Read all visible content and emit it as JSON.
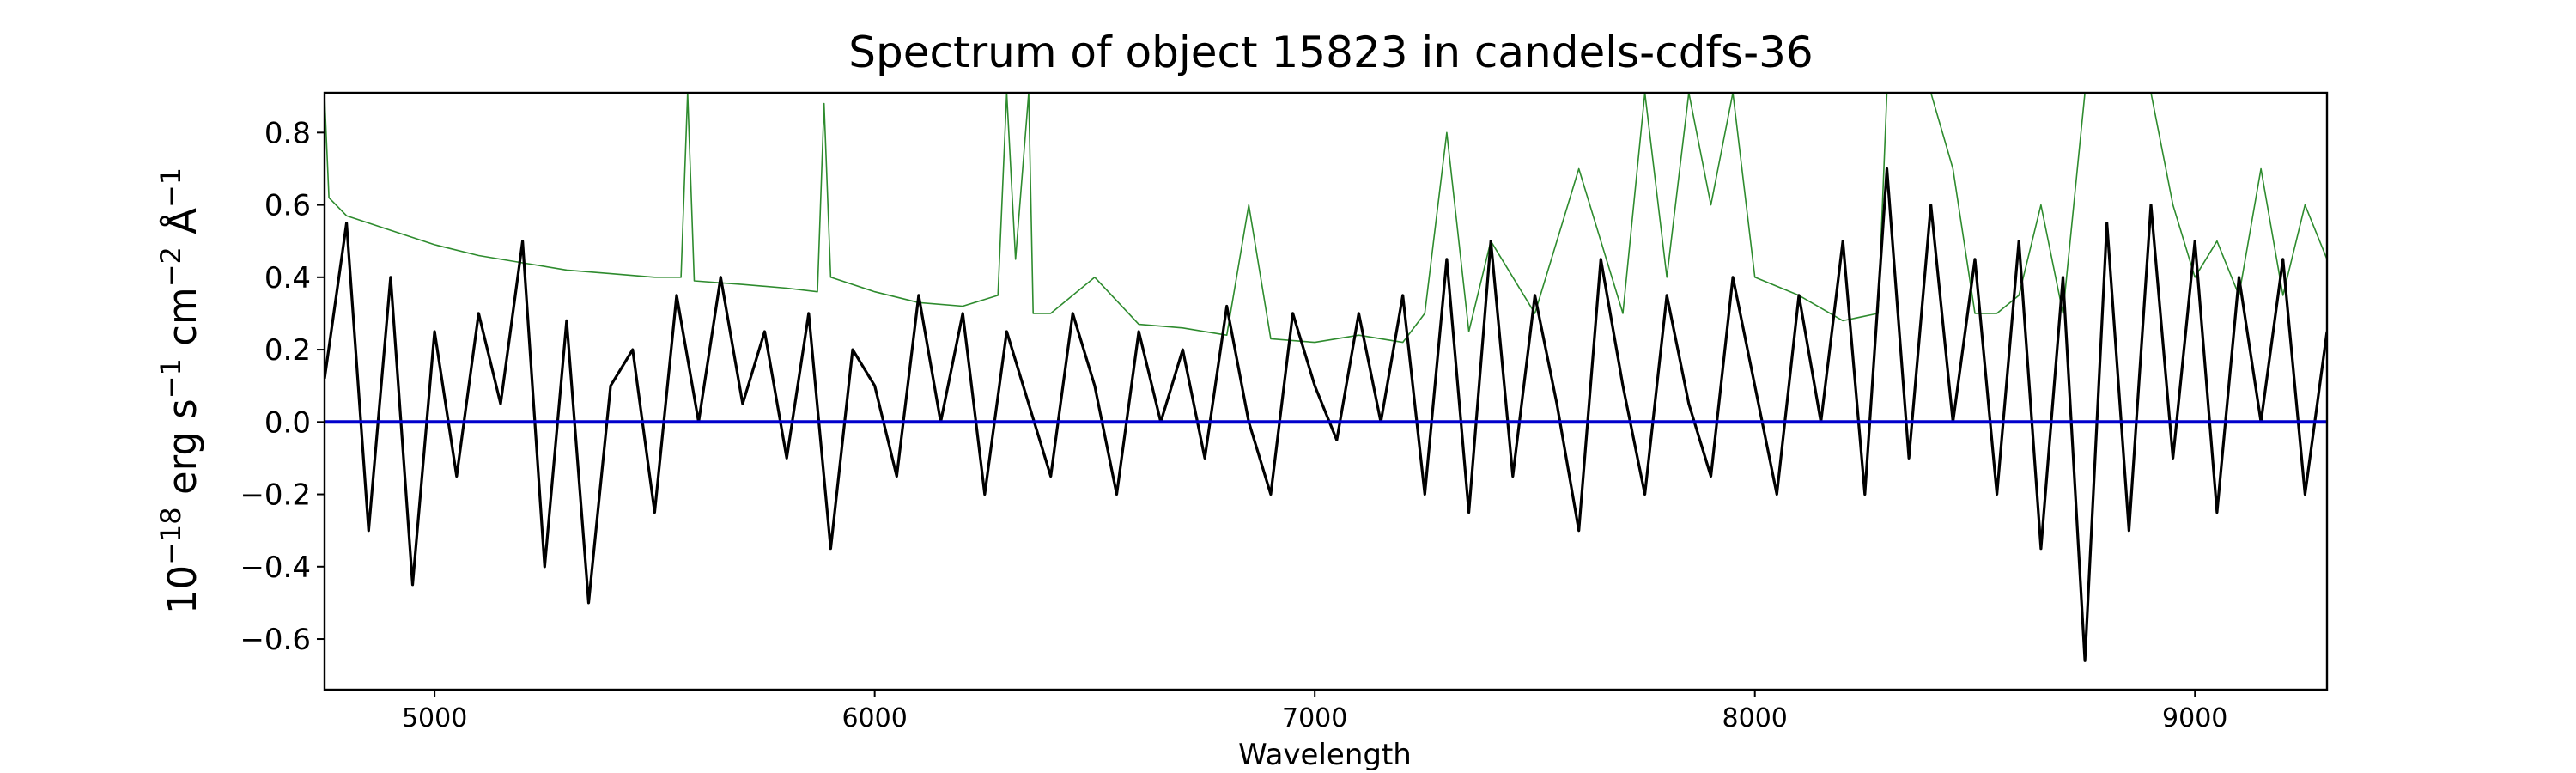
{
  "chart_data": {
    "type": "line",
    "title": "Spectrum of object 15823 in candels-cdfs-36",
    "xlabel": "Wavelength",
    "ylabel_parts": {
      "pre": "10",
      "exp1": "−18",
      "mid1": " erg s",
      "exp2": "−1",
      "mid2": " cm",
      "exp3": "−2",
      "mid3": " Å",
      "exp4": "−1"
    },
    "xlim": [
      4750,
      9300
    ],
    "ylim": [
      -0.74,
      0.91
    ],
    "xticks": [
      5000,
      6000,
      7000,
      8000,
      9000
    ],
    "xtick_labels": [
      "5000",
      "6000",
      "7000",
      "8000",
      "9000"
    ],
    "yticks": [
      -0.6,
      -0.4,
      -0.2,
      0.0,
      0.2,
      0.4,
      0.6,
      0.8
    ],
    "ytick_labels": [
      "−0.6",
      "−0.4",
      "−0.2",
      "0.0",
      "0.2",
      "0.4",
      "0.6",
      "0.8"
    ],
    "grid": false,
    "colors": {
      "flux": "#000000",
      "error": "#2e8b2e",
      "zero": "#0000cc"
    },
    "series": [
      {
        "role": "flux",
        "x": [
          4750,
          4800,
          4850,
          4900,
          4950,
          5000,
          5050,
          5100,
          5150,
          5200,
          5250,
          5300,
          5350,
          5400,
          5450,
          5500,
          5550,
          5600,
          5650,
          5700,
          5750,
          5800,
          5850,
          5900,
          5950,
          6000,
          6050,
          6100,
          6150,
          6200,
          6250,
          6300,
          6350,
          6400,
          6450,
          6500,
          6550,
          6600,
          6650,
          6700,
          6750,
          6800,
          6850,
          6900,
          6950,
          7000,
          7050,
          7100,
          7150,
          7200,
          7250,
          7300,
          7350,
          7400,
          7450,
          7500,
          7550,
          7600,
          7650,
          7700,
          7750,
          7800,
          7850,
          7900,
          7950,
          8000,
          8050,
          8100,
          8150,
          8200,
          8250,
          8300,
          8350,
          8400,
          8450,
          8500,
          8550,
          8600,
          8650,
          8700,
          8750,
          8800,
          8850,
          8900,
          8950,
          9000,
          9050,
          9100,
          9150,
          9200,
          9250,
          9300
        ],
        "y": [
          0.12,
          0.55,
          -0.3,
          0.4,
          -0.45,
          0.25,
          -0.15,
          0.3,
          0.05,
          0.5,
          -0.4,
          0.28,
          -0.5,
          0.1,
          0.2,
          -0.25,
          0.35,
          0.0,
          0.4,
          0.05,
          0.25,
          -0.1,
          0.3,
          -0.35,
          0.2,
          0.1,
          -0.15,
          0.35,
          0.0,
          0.3,
          -0.2,
          0.25,
          0.05,
          -0.15,
          0.3,
          0.1,
          -0.2,
          0.25,
          0.0,
          0.2,
          -0.1,
          0.32,
          0.0,
          -0.2,
          0.3,
          0.1,
          -0.05,
          0.3,
          0.0,
          0.35,
          -0.2,
          0.45,
          -0.25,
          0.5,
          -0.15,
          0.35,
          0.05,
          -0.3,
          0.45,
          0.1,
          -0.2,
          0.35,
          0.05,
          -0.15,
          0.4,
          0.1,
          -0.2,
          0.35,
          0.0,
          0.5,
          -0.2,
          0.7,
          -0.1,
          0.6,
          0.0,
          0.45,
          -0.2,
          0.5,
          -0.35,
          0.4,
          -0.66,
          0.55,
          -0.3,
          0.6,
          -0.1,
          0.5,
          -0.25,
          0.4,
          0.0,
          0.45,
          -0.2,
          0.25
        ]
      },
      {
        "role": "error",
        "x": [
          4750,
          4760,
          4800,
          4900,
          5000,
          5100,
          5200,
          5300,
          5400,
          5500,
          5560,
          5575,
          5590,
          5700,
          5800,
          5870,
          5885,
          5900,
          6000,
          6100,
          6200,
          6280,
          6300,
          6320,
          6350,
          6360,
          6400,
          6500,
          6600,
          6700,
          6800,
          6850,
          6900,
          7000,
          7100,
          7200,
          7250,
          7300,
          7350,
          7400,
          7500,
          7600,
          7700,
          7750,
          7800,
          7850,
          7900,
          7950,
          8000,
          8100,
          8200,
          8280,
          8300,
          8350,
          8400,
          8450,
          8500,
          8550,
          8600,
          8650,
          8700,
          8750,
          8800,
          8850,
          8900,
          8950,
          9000,
          9050,
          9100,
          9150,
          9200,
          9250,
          9300
        ],
        "y": [
          0.9,
          0.62,
          0.57,
          0.53,
          0.49,
          0.46,
          0.44,
          0.42,
          0.41,
          0.4,
          0.4,
          0.91,
          0.39,
          0.38,
          0.37,
          0.36,
          0.88,
          0.4,
          0.36,
          0.33,
          0.32,
          0.35,
          0.91,
          0.45,
          0.91,
          0.3,
          0.3,
          0.4,
          0.27,
          0.26,
          0.24,
          0.6,
          0.23,
          0.22,
          0.24,
          0.22,
          0.3,
          0.8,
          0.25,
          0.5,
          0.3,
          0.7,
          0.3,
          0.91,
          0.4,
          0.91,
          0.6,
          0.91,
          0.4,
          0.35,
          0.28,
          0.3,
          0.91,
          0.91,
          0.91,
          0.7,
          0.3,
          0.3,
          0.35,
          0.6,
          0.3,
          0.91,
          0.91,
          0.91,
          0.91,
          0.6,
          0.4,
          0.5,
          0.35,
          0.7,
          0.35,
          0.6,
          0.45
        ]
      },
      {
        "role": "zero",
        "x": [
          4750,
          9300
        ],
        "y": [
          0.0,
          0.0
        ]
      }
    ]
  }
}
